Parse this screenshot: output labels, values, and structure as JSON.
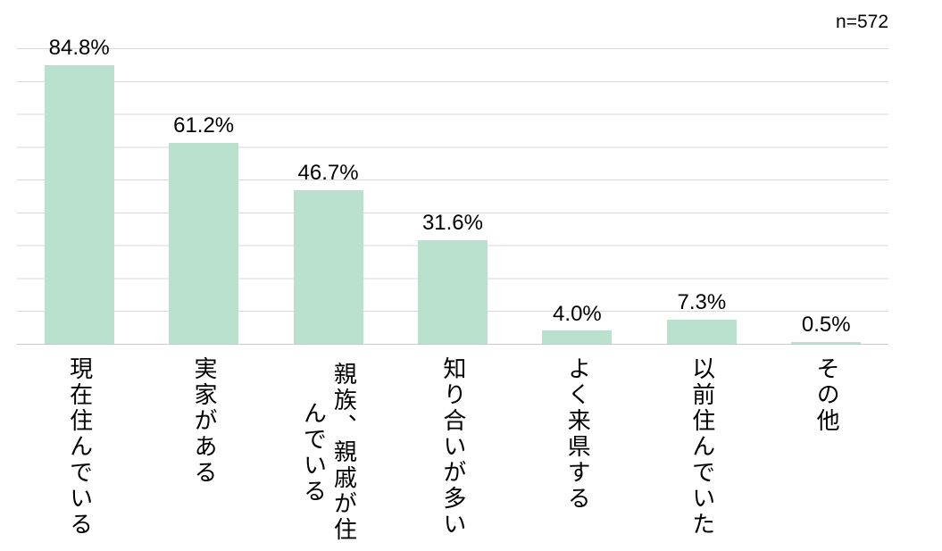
{
  "annotation": {
    "sample_size": "n=572"
  },
  "chart_data": {
    "type": "bar",
    "categories": [
      "現在住んでいる",
      "実家がある",
      "親族、親戚が住んでいる",
      "知り合いが多い",
      "よく来県する",
      "以前住んでいた",
      "その他"
    ],
    "values": [
      84.8,
      61.2,
      46.7,
      31.6,
      4.0,
      7.3,
      0.5
    ],
    "value_labels": [
      "84.8%",
      "61.2%",
      "46.7%",
      "31.6%",
      "4.0%",
      "7.3%",
      "0.5%"
    ],
    "title": "",
    "xlabel": "",
    "ylabel": "",
    "ylim": [
      0,
      90
    ],
    "gridline_interval_pct": 10,
    "grid": true,
    "legend_position": "none",
    "n_label": "n=572",
    "bar_color": "#b9e1cd",
    "gridline_color": "#d9d9d9",
    "axis_line_color": "#c9c9c9",
    "label_color": "#000000"
  }
}
